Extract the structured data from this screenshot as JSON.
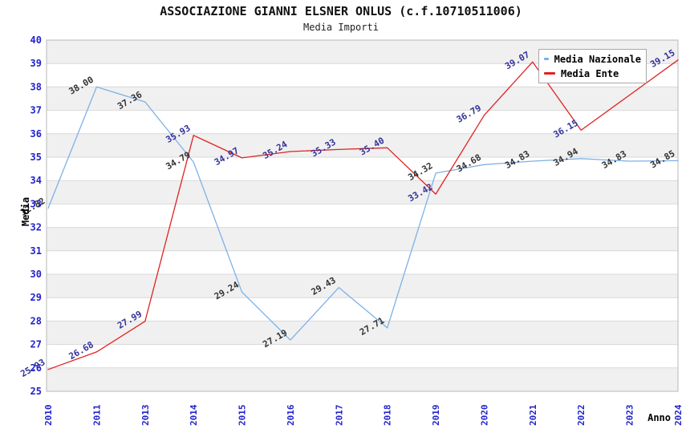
{
  "chart_data": {
    "type": "line",
    "title": "ASSOCIAZIONE GIANNI ELSNER ONLUS (c.f.10710511006)",
    "subtitle": "Media Importi",
    "xlabel": "Anno",
    "ylabel": "Media",
    "categories": [
      "2010",
      "2011",
      "2013",
      "2014",
      "2015",
      "2016",
      "2017",
      "2018",
      "2019",
      "2020",
      "2021",
      "2022",
      "2023",
      "2024"
    ],
    "ylim": [
      25,
      40
    ],
    "ytick_step": 1,
    "grid": "horizontal",
    "alternating_bands": true,
    "legend_position": "top-right",
    "series": [
      {
        "name": "Media Nazionale",
        "color": "#7db1e6",
        "label_color": "#333333",
        "values": [
          32.82,
          38.0,
          37.36,
          34.79,
          29.24,
          27.19,
          29.43,
          27.71,
          34.32,
          34.68,
          34.83,
          34.94,
          34.83,
          34.85
        ],
        "hidden_label_indices": []
      },
      {
        "name": "Media Ente",
        "color": "#e02222",
        "label_color": "#333399",
        "values": [
          25.93,
          26.68,
          27.99,
          35.93,
          34.97,
          35.24,
          35.33,
          35.4,
          33.42,
          36.79,
          39.07,
          36.15,
          37.65,
          39.15
        ],
        "hidden_label_indices": [
          12
        ],
        "hidden_label_note": "2023 label is covered by the legend box; value estimated from line position"
      }
    ],
    "styles": {
      "tick_label_color": "#2222cc",
      "band_color": "#f0f0f0",
      "grid_color": "#d9d9d9",
      "plot_border_color": "#b8b8b8",
      "axis_title_color": "#000000",
      "background": "#ffffff"
    }
  }
}
